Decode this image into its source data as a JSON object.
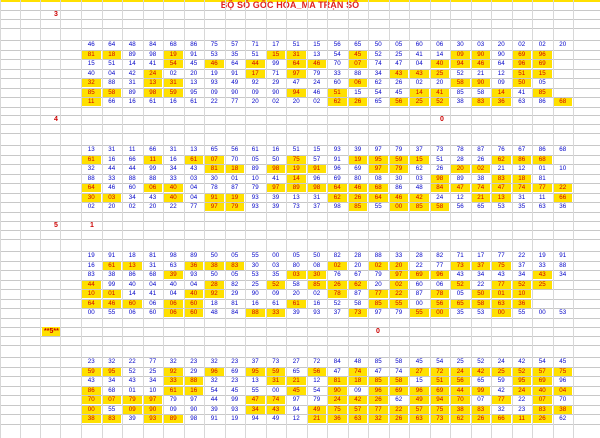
{
  "title": "BỘ SỐ GỐC HOA_MA TRẬN SỐ",
  "colors": {
    "highlight": "#ffe000",
    "number": "#0000c8",
    "number_hl": "#d00000",
    "marker": "#cc0000"
  },
  "blocks": [
    {
      "label": "3",
      "label2": "",
      "rows": [
        [
          "46",
          "64",
          "48",
          "84",
          "68",
          "86",
          "75",
          "57",
          "71",
          "17",
          "51",
          "15",
          "56",
          "65",
          "50",
          "05",
          "60",
          "06",
          "30",
          "03",
          "20",
          "02",
          "02",
          "20"
        ],
        [
          "81",
          "18",
          "89",
          "98",
          "19",
          "91",
          "53",
          "35",
          "51",
          "15",
          "31",
          "13",
          "54",
          "45",
          "52",
          "25",
          "41",
          "14",
          "09",
          "90",
          "90",
          "69",
          "96"
        ],
        [
          "15",
          "51",
          "14",
          "41",
          "54",
          "45",
          "46",
          "64",
          "44",
          "99",
          "64",
          "46",
          "70",
          "07",
          "74",
          "47",
          "04",
          "40",
          "94",
          "46",
          "64",
          "96",
          "69"
        ],
        [
          "40",
          "04",
          "42",
          "24",
          "02",
          "20",
          "19",
          "91",
          "17",
          "71",
          "97",
          "79",
          "33",
          "88",
          "34",
          "43",
          "43",
          "25",
          "52",
          "21",
          "12",
          "51",
          "15"
        ],
        [
          "32",
          "88",
          "31",
          "13",
          "31",
          "13",
          "93",
          "49",
          "92",
          "29",
          "47",
          "24",
          "60",
          "06",
          "62",
          "26",
          "02",
          "20",
          "58",
          "90",
          "09",
          "50",
          "05"
        ],
        [
          "85",
          "58",
          "89",
          "98",
          "59",
          "95",
          "09",
          "90",
          "09",
          "90",
          "94",
          "46",
          "51",
          "15",
          "54",
          "45",
          "14",
          "41",
          "85",
          "58",
          "14",
          "41",
          "85"
        ],
        [
          "11",
          "66",
          "16",
          "61",
          "16",
          "61",
          "22",
          "77",
          "20",
          "02",
          "20",
          "02",
          "62",
          "26",
          "65",
          "56",
          "25",
          "52",
          "38",
          "83",
          "36",
          "63",
          "86",
          "68"
        ]
      ]
    },
    {
      "label": "4",
      "label2": "0",
      "rows": [
        [
          "13",
          "31",
          "11",
          "66",
          "31",
          "13",
          "65",
          "56",
          "61",
          "16",
          "51",
          "15",
          "93",
          "39",
          "97",
          "79",
          "37",
          "73",
          "78",
          "87",
          "76",
          "67",
          "86",
          "68"
        ],
        [
          "61",
          "16",
          "66",
          "11",
          "16",
          "61",
          "07",
          "70",
          "05",
          "50",
          "75",
          "57",
          "91",
          "19",
          "95",
          "59",
          "15",
          "51",
          "28",
          "26",
          "62",
          "86",
          "68"
        ],
        [
          "32",
          "44",
          "44",
          "99",
          "34",
          "43",
          "81",
          "18",
          "89",
          "98",
          "19",
          "91",
          "96",
          "69",
          "97",
          "79",
          "62",
          "26",
          "20",
          "02",
          "21",
          "12",
          "01",
          "10"
        ],
        [
          "88",
          "33",
          "88",
          "88",
          "33",
          "03",
          "30",
          "01",
          "10",
          "41",
          "14",
          "96",
          "69",
          "80",
          "08",
          "30",
          "03",
          "98",
          "89",
          "38",
          "83",
          "18",
          "81"
        ],
        [
          "64",
          "46",
          "60",
          "06",
          "40",
          "04",
          "78",
          "87",
          "79",
          "97",
          "89",
          "98",
          "64",
          "46",
          "68",
          "86",
          "48",
          "84",
          "47",
          "74",
          "47",
          "74",
          "77",
          "22"
        ],
        [
          "30",
          "03",
          "34",
          "43",
          "40",
          "04",
          "91",
          "19",
          "93",
          "39",
          "13",
          "31",
          "62",
          "26",
          "64",
          "46",
          "42",
          "24",
          "12",
          "21",
          "13",
          "31",
          "11",
          "66"
        ],
        [
          "02",
          "20",
          "02",
          "20",
          "22",
          "77",
          "97",
          "79",
          "93",
          "39",
          "73",
          "37",
          "98",
          "85",
          "55",
          "00",
          "85",
          "58",
          "56",
          "65",
          "53",
          "35",
          "63",
          "36"
        ]
      ]
    },
    {
      "label": "5",
      "label2": "1",
      "rows": [
        [
          "19",
          "91",
          "18",
          "81",
          "98",
          "89",
          "50",
          "05",
          "55",
          "00",
          "05",
          "50",
          "82",
          "28",
          "88",
          "33",
          "28",
          "82",
          "71",
          "17",
          "77",
          "22",
          "19",
          "91"
        ],
        [
          "16",
          "61",
          "13",
          "31",
          "63",
          "36",
          "38",
          "83",
          "30",
          "03",
          "80",
          "08",
          "02",
          "20",
          "02",
          "20",
          "22",
          "77",
          "73",
          "37",
          "75",
          "37",
          "33",
          "88"
        ],
        [
          "83",
          "38",
          "86",
          "68",
          "39",
          "93",
          "50",
          "05",
          "53",
          "35",
          "03",
          "30",
          "76",
          "67",
          "79",
          "97",
          "69",
          "96",
          "43",
          "34",
          "43",
          "34",
          "43",
          "34"
        ],
        [
          "44",
          "99",
          "40",
          "04",
          "40",
          "04",
          "28",
          "82",
          "25",
          "52",
          "58",
          "85",
          "26",
          "62",
          "20",
          "02",
          "60",
          "06",
          "52",
          "22",
          "77",
          "52",
          "25"
        ],
        [
          "10",
          "01",
          "14",
          "41",
          "04",
          "40",
          "92",
          "29",
          "90",
          "09",
          "20",
          "02",
          "78",
          "87",
          "77",
          "22",
          "87",
          "78",
          "05",
          "50",
          "01",
          "10"
        ],
        [
          "64",
          "46",
          "60",
          "06",
          "06",
          "60",
          "18",
          "81",
          "16",
          "61",
          "61",
          "16",
          "52",
          "58",
          "85",
          "55",
          "00",
          "56",
          "65",
          "58",
          "63",
          "36"
        ],
        [
          "00",
          "55",
          "06",
          "60",
          "06",
          "60",
          "48",
          "84",
          "88",
          "33",
          "39",
          "93",
          "37",
          "73",
          "97",
          "79",
          "55",
          "00",
          "35",
          "53",
          "00",
          "55",
          "00",
          "53"
        ]
      ]
    },
    {
      "label": "**5**",
      "label2": "0",
      "rows": [
        [
          "23",
          "32",
          "22",
          "77",
          "32",
          "23",
          "32",
          "23",
          "37",
          "73",
          "27",
          "72",
          "84",
          "48",
          "85",
          "58",
          "45",
          "54",
          "25",
          "52",
          "24",
          "42",
          "54",
          "45"
        ],
        [
          "59",
          "95",
          "52",
          "25",
          "92",
          "29",
          "96",
          "69",
          "95",
          "59",
          "65",
          "56",
          "47",
          "74",
          "47",
          "74",
          "27",
          "72",
          "24",
          "42",
          "25",
          "52",
          "57",
          "75"
        ],
        [
          "43",
          "34",
          "43",
          "34",
          "33",
          "88",
          "32",
          "23",
          "13",
          "31",
          "21",
          "12",
          "81",
          "18",
          "85",
          "58",
          "15",
          "51",
          "56",
          "65",
          "59",
          "95",
          "69",
          "96"
        ],
        [
          "86",
          "68",
          "01",
          "10",
          "61",
          "16",
          "54",
          "45",
          "55",
          "00",
          "45",
          "54",
          "90",
          "09",
          "96",
          "69",
          "96",
          "69",
          "44",
          "99",
          "42",
          "24",
          "40",
          "04"
        ],
        [
          "70",
          "07",
          "79",
          "97",
          "79",
          "97",
          "44",
          "99",
          "47",
          "74",
          "97",
          "79",
          "24",
          "42",
          "26",
          "62",
          "49",
          "94",
          "70",
          "07",
          "77",
          "22",
          "07",
          "70"
        ],
        [
          "00",
          "55",
          "09",
          "90",
          "09",
          "90",
          "39",
          "93",
          "34",
          "43",
          "94",
          "49",
          "75",
          "57",
          "77",
          "22",
          "57",
          "75",
          "38",
          "83",
          "32",
          "23",
          "83",
          "38"
        ],
        [
          "38",
          "83",
          "39",
          "93",
          "89",
          "98",
          "91",
          "19",
          "94",
          "49",
          "12",
          "21",
          "36",
          "63",
          "32",
          "26",
          "63",
          "73",
          "62",
          "26",
          "66",
          "11",
          "26",
          "62"
        ]
      ]
    }
  ]
}
